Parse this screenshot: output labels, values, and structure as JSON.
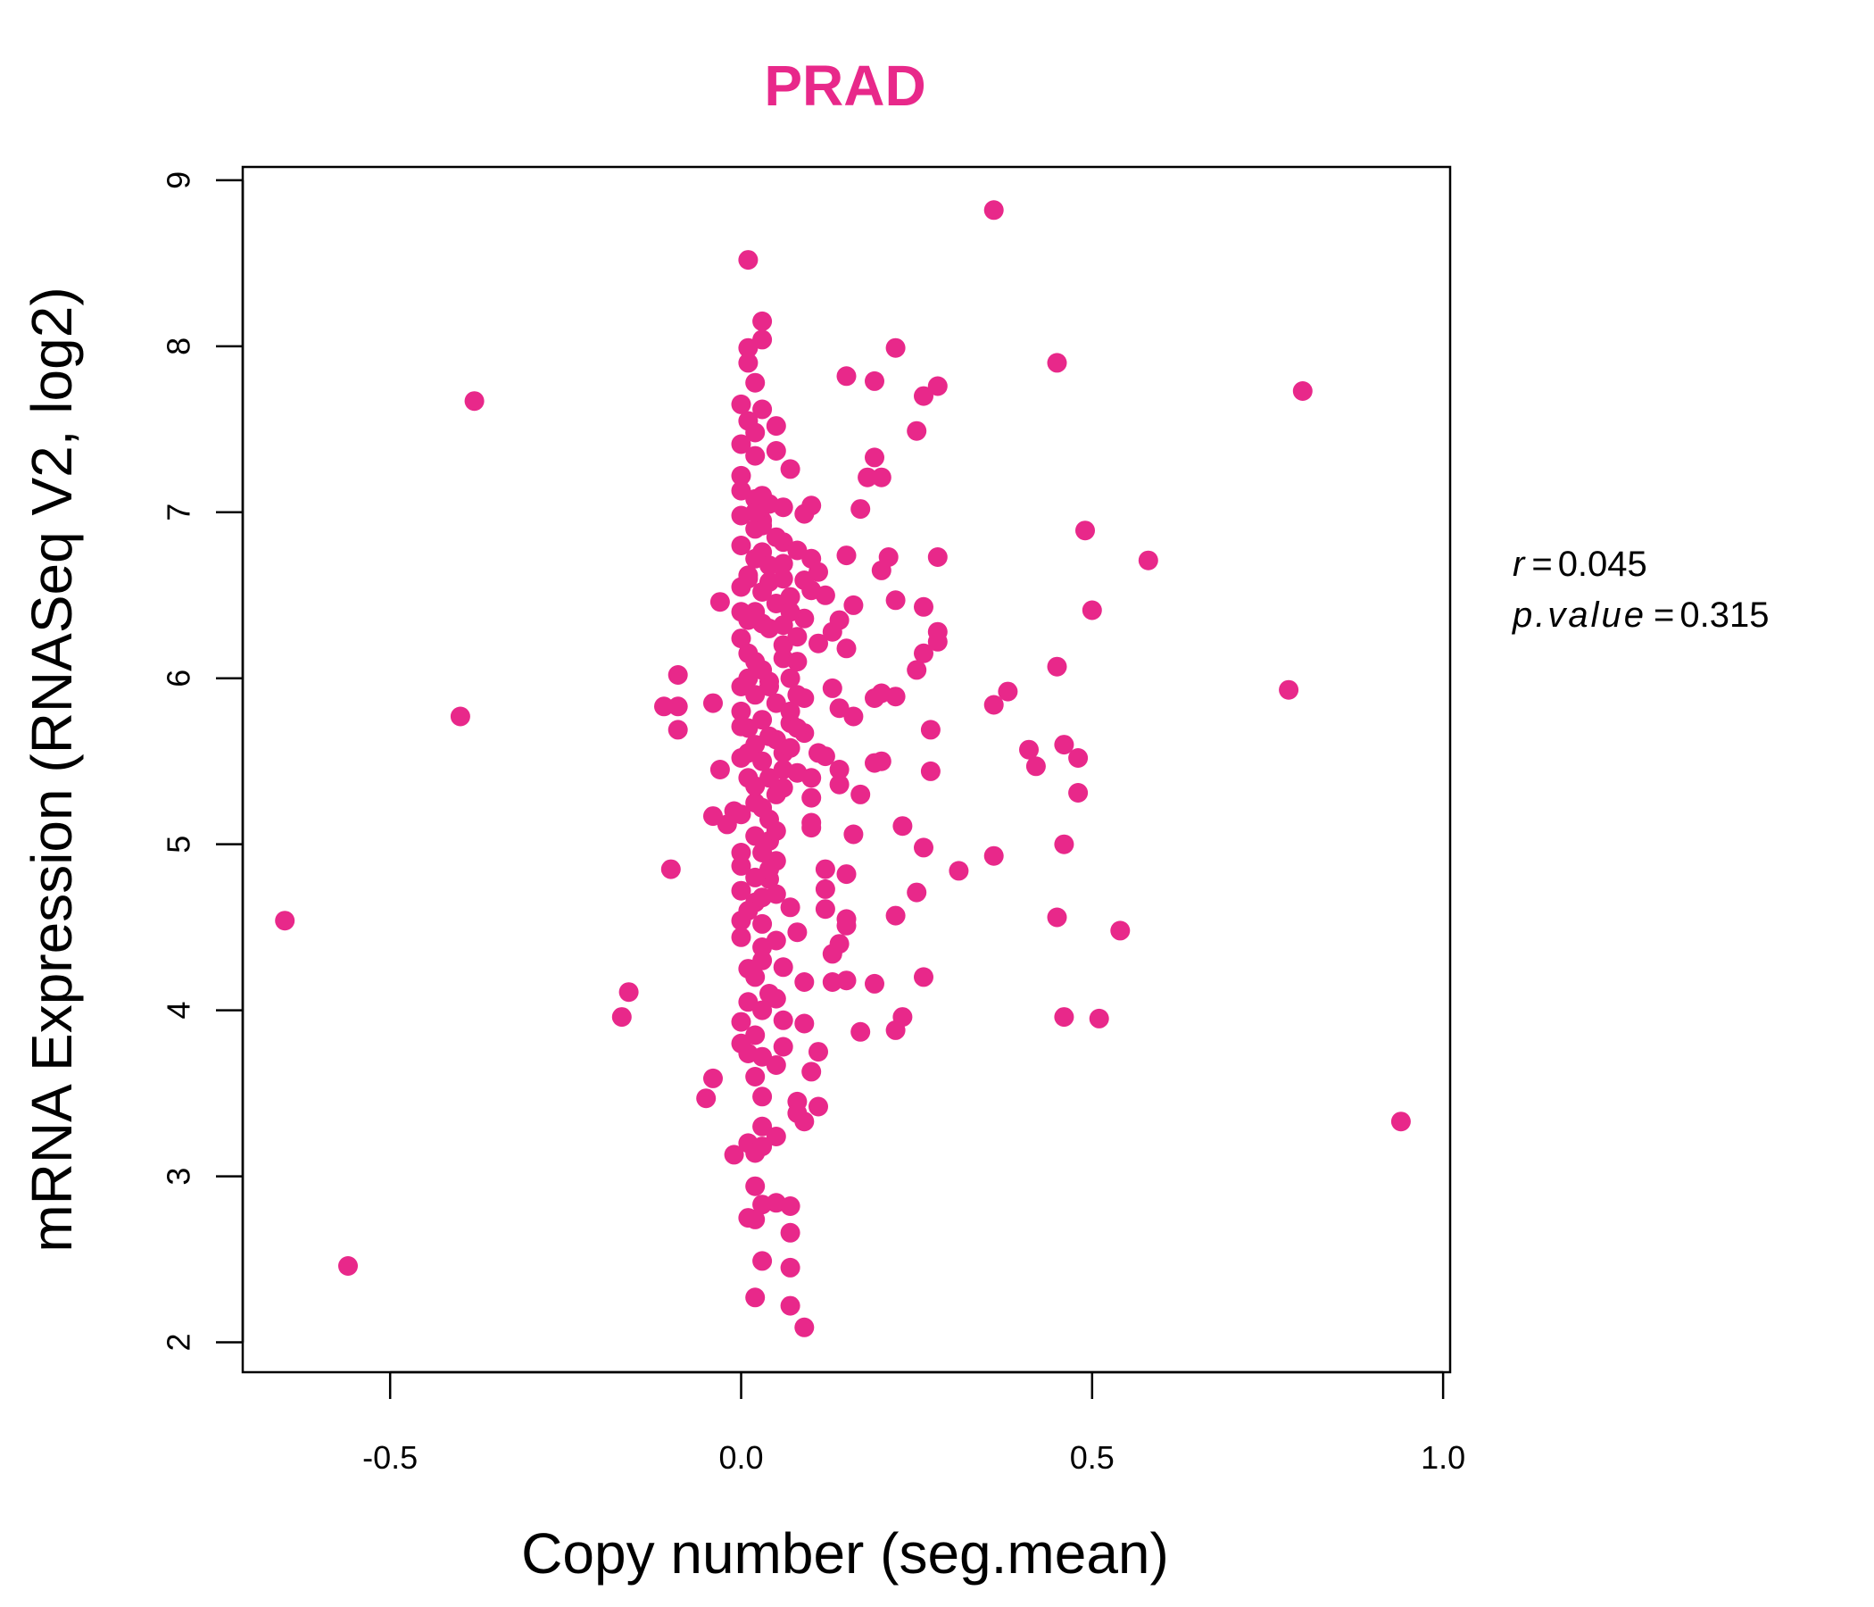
{
  "chart_data": {
    "type": "scatter",
    "title": "PRAD",
    "xlabel": "Copy number (seg.mean)",
    "ylabel": "mRNA Expression (RNASeq V2, log2)",
    "xlim": [
      -0.71,
      1.01
    ],
    "ylim": [
      1.82,
      9.08
    ],
    "xticks": [
      -0.5,
      0.0,
      0.5,
      1.0
    ],
    "xtick_labels": [
      "-0.5",
      "0.0",
      "0.5",
      "1.0"
    ],
    "yticks": [
      2,
      3,
      4,
      5,
      6,
      7,
      8,
      9
    ],
    "ytick_labels": [
      "2",
      "3",
      "4",
      "5",
      "6",
      "7",
      "8",
      "9"
    ],
    "grid": false,
    "legend": "none",
    "point_color": "#E8288A",
    "title_color": "#E8288A",
    "stats": {
      "r_symbol": "r",
      "r_value": "0.045",
      "p_symbol": "p.value",
      "p_value": "0.315",
      "equals": "="
    },
    "points": [
      [
        0.36,
        8.82
      ],
      [
        0.01,
        8.52
      ],
      [
        0.03,
        8.15
      ],
      [
        0.03,
        8.04
      ],
      [
        0.22,
        7.99
      ],
      [
        0.01,
        7.99
      ],
      [
        0.01,
        7.9
      ],
      [
        0.45,
        7.9
      ],
      [
        0.15,
        7.82
      ],
      [
        0.19,
        7.79
      ],
      [
        0.02,
        7.78
      ],
      [
        0.28,
        7.76
      ],
      [
        0.8,
        7.73
      ],
      [
        0.26,
        7.7
      ],
      [
        -0.38,
        7.67
      ],
      [
        0.0,
        7.65
      ],
      [
        0.03,
        7.62
      ],
      [
        0.01,
        7.55
      ],
      [
        0.05,
        7.52
      ],
      [
        0.02,
        7.48
      ],
      [
        0.25,
        7.49
      ],
      [
        0.0,
        7.41
      ],
      [
        0.05,
        7.37
      ],
      [
        0.02,
        7.34
      ],
      [
        0.19,
        7.33
      ],
      [
        0.07,
        7.26
      ],
      [
        0.18,
        7.21
      ],
      [
        0.2,
        7.21
      ],
      [
        0.0,
        7.22
      ],
      [
        0.0,
        7.13
      ],
      [
        0.02,
        7.08
      ],
      [
        0.1,
        7.04
      ],
      [
        0.06,
        7.03
      ],
      [
        0.17,
        7.02
      ],
      [
        0.09,
        6.99
      ],
      [
        0.0,
        6.98
      ],
      [
        0.03,
        6.95
      ],
      [
        0.02,
        6.9
      ],
      [
        0.49,
        6.89
      ],
      [
        0.06,
        6.82
      ],
      [
        0.0,
        6.8
      ],
      [
        0.08,
        6.77
      ],
      [
        0.03,
        6.76
      ],
      [
        0.15,
        6.74
      ],
      [
        0.21,
        6.73
      ],
      [
        0.28,
        6.73
      ],
      [
        0.1,
        6.72
      ],
      [
        0.58,
        6.71
      ],
      [
        0.06,
        6.69
      ],
      [
        0.2,
        6.65
      ],
      [
        0.11,
        6.64
      ],
      [
        0.01,
        6.62
      ],
      [
        0.09,
        6.59
      ],
      [
        0.04,
        6.58
      ],
      [
        0.0,
        6.55
      ],
      [
        0.1,
        6.53
      ],
      [
        0.12,
        6.5
      ],
      [
        0.07,
        6.49
      ],
      [
        0.22,
        6.47
      ],
      [
        -0.03,
        6.46
      ],
      [
        0.16,
        6.44
      ],
      [
        0.26,
        6.43
      ],
      [
        0.5,
        6.41
      ],
      [
        0.14,
        6.35
      ],
      [
        0.09,
        6.36
      ],
      [
        0.03,
        6.33
      ],
      [
        0.13,
        6.28
      ],
      [
        0.28,
        6.28
      ],
      [
        0.11,
        6.21
      ],
      [
        0.0,
        6.24
      ],
      [
        0.28,
        6.22
      ],
      [
        0.15,
        6.18
      ],
      [
        0.26,
        6.15
      ],
      [
        0.06,
        6.12
      ],
      [
        0.25,
        6.05
      ],
      [
        0.45,
        6.07
      ],
      [
        -0.09,
        6.02
      ],
      [
        0.01,
        6.0
      ],
      [
        0.04,
        5.98
      ],
      [
        0.13,
        5.94
      ],
      [
        0.38,
        5.92
      ],
      [
        0.78,
        5.93
      ],
      [
        0.2,
        5.91
      ],
      [
        0.19,
        5.88
      ],
      [
        0.22,
        5.89
      ],
      [
        0.09,
        5.88
      ],
      [
        -0.04,
        5.85
      ],
      [
        0.36,
        5.84
      ],
      [
        -0.11,
        5.83
      ],
      [
        -0.09,
        5.83
      ],
      [
        0.14,
        5.82
      ],
      [
        0.0,
        5.8
      ],
      [
        0.16,
        5.77
      ],
      [
        -0.4,
        5.77
      ],
      [
        0.07,
        5.73
      ],
      [
        0.0,
        5.71
      ],
      [
        -0.09,
        5.69
      ],
      [
        0.27,
        5.69
      ],
      [
        0.09,
        5.67
      ],
      [
        0.05,
        5.63
      ],
      [
        0.46,
        5.6
      ],
      [
        0.41,
        5.57
      ],
      [
        0.11,
        5.55
      ],
      [
        0.12,
        5.53
      ],
      [
        0.48,
        5.52
      ],
      [
        0.0,
        5.52
      ],
      [
        0.2,
        5.5
      ],
      [
        0.19,
        5.49
      ],
      [
        0.42,
        5.47
      ],
      [
        0.14,
        5.45
      ],
      [
        -0.03,
        5.45
      ],
      [
        0.27,
        5.44
      ],
      [
        0.08,
        5.43
      ],
      [
        0.1,
        5.4
      ],
      [
        0.14,
        5.36
      ],
      [
        0.06,
        5.34
      ],
      [
        0.48,
        5.31
      ],
      [
        0.17,
        5.3
      ],
      [
        0.1,
        5.28
      ],
      [
        0.02,
        5.25
      ],
      [
        -0.01,
        5.2
      ],
      [
        0.0,
        5.18
      ],
      [
        -0.04,
        5.17
      ],
      [
        0.1,
        5.13
      ],
      [
        -0.02,
        5.12
      ],
      [
        0.23,
        5.11
      ],
      [
        0.1,
        5.1
      ],
      [
        0.16,
        5.06
      ],
      [
        0.04,
        5.02
      ],
      [
        0.46,
        5.0
      ],
      [
        0.26,
        4.98
      ],
      [
        0.0,
        4.95
      ],
      [
        0.36,
        4.93
      ],
      [
        0.05,
        4.9
      ],
      [
        0.0,
        4.87
      ],
      [
        0.12,
        4.85
      ],
      [
        -0.1,
        4.85
      ],
      [
        0.31,
        4.84
      ],
      [
        0.15,
        4.82
      ],
      [
        0.04,
        4.79
      ],
      [
        0.12,
        4.73
      ],
      [
        0.0,
        4.72
      ],
      [
        0.25,
        4.71
      ],
      [
        0.02,
        4.65
      ],
      [
        0.07,
        4.62
      ],
      [
        0.12,
        4.61
      ],
      [
        0.22,
        4.57
      ],
      [
        0.45,
        4.56
      ],
      [
        0.15,
        4.55
      ],
      [
        0.0,
        4.54
      ],
      [
        -0.65,
        4.54
      ],
      [
        0.15,
        4.51
      ],
      [
        0.54,
        4.48
      ],
      [
        0.08,
        4.47
      ],
      [
        0.0,
        4.44
      ],
      [
        0.05,
        4.42
      ],
      [
        0.14,
        4.4
      ],
      [
        0.03,
        4.38
      ],
      [
        0.13,
        4.34
      ],
      [
        0.03,
        4.3
      ],
      [
        0.06,
        4.26
      ],
      [
        0.01,
        4.25
      ],
      [
        0.02,
        4.2
      ],
      [
        0.26,
        4.2
      ],
      [
        0.15,
        4.18
      ],
      [
        0.09,
        4.17
      ],
      [
        0.13,
        4.17
      ],
      [
        0.19,
        4.16
      ],
      [
        -0.16,
        4.11
      ],
      [
        0.04,
        4.1
      ],
      [
        0.05,
        4.07
      ],
      [
        0.01,
        4.05
      ],
      [
        0.03,
        4.0
      ],
      [
        0.46,
        3.96
      ],
      [
        0.51,
        3.95
      ],
      [
        -0.17,
        3.96
      ],
      [
        0.23,
        3.96
      ],
      [
        0.06,
        3.94
      ],
      [
        0.0,
        3.93
      ],
      [
        0.09,
        3.92
      ],
      [
        0.22,
        3.88
      ],
      [
        0.17,
        3.87
      ],
      [
        0.02,
        3.85
      ],
      [
        0.0,
        3.8
      ],
      [
        0.06,
        3.78
      ],
      [
        0.11,
        3.75
      ],
      [
        0.01,
        3.74
      ],
      [
        0.03,
        3.72
      ],
      [
        0.05,
        3.67
      ],
      [
        0.1,
        3.63
      ],
      [
        0.02,
        3.6
      ],
      [
        -0.04,
        3.59
      ],
      [
        0.03,
        3.48
      ],
      [
        -0.05,
        3.47
      ],
      [
        0.08,
        3.45
      ],
      [
        0.11,
        3.42
      ],
      [
        0.08,
        3.38
      ],
      [
        0.09,
        3.33
      ],
      [
        0.94,
        3.33
      ],
      [
        0.03,
        3.3
      ],
      [
        0.05,
        3.24
      ],
      [
        0.01,
        3.2
      ],
      [
        0.03,
        3.18
      ],
      [
        0.02,
        3.14
      ],
      [
        -0.01,
        3.13
      ],
      [
        0.02,
        2.94
      ],
      [
        0.05,
        2.84
      ],
      [
        0.03,
        2.83
      ],
      [
        0.07,
        2.82
      ],
      [
        0.01,
        2.75
      ],
      [
        0.02,
        2.74
      ],
      [
        0.07,
        2.66
      ],
      [
        0.03,
        2.49
      ],
      [
        -0.56,
        2.46
      ],
      [
        0.07,
        2.45
      ],
      [
        0.02,
        2.27
      ],
      [
        0.07,
        2.22
      ],
      [
        0.09,
        2.09
      ],
      [
        0.02,
        6.1
      ],
      [
        0.03,
        6.05
      ],
      [
        0.04,
        5.95
      ],
      [
        0.02,
        5.9
      ],
      [
        0.05,
        5.85
      ],
      [
        0.03,
        5.75
      ],
      [
        0.01,
        5.7
      ],
      [
        0.04,
        5.65
      ],
      [
        0.02,
        5.6
      ],
      [
        0.06,
        5.55
      ],
      [
        0.03,
        5.5
      ],
      [
        0.04,
        5.4
      ],
      [
        0.02,
        5.35
      ],
      [
        0.05,
        5.3
      ],
      [
        0.03,
        5.22
      ],
      [
        0.06,
        6.2
      ],
      [
        0.04,
        6.3
      ],
      [
        0.02,
        6.4
      ],
      [
        0.05,
        6.45
      ],
      [
        0.03,
        6.52
      ],
      [
        0.01,
        6.6
      ],
      [
        0.04,
        6.68
      ],
      [
        0.02,
        6.72
      ],
      [
        0.05,
        6.85
      ],
      [
        0.03,
        6.92
      ],
      [
        0.07,
        6.0
      ],
      [
        0.07,
        5.8
      ],
      [
        0.07,
        5.58
      ],
      [
        0.06,
        5.45
      ],
      [
        0.06,
        6.32
      ],
      [
        0.01,
        6.15
      ],
      [
        0.0,
        5.95
      ],
      [
        0.01,
        5.55
      ],
      [
        0.0,
        6.4
      ],
      [
        0.01,
        5.4
      ],
      [
        0.04,
        5.15
      ],
      [
        0.02,
        5.05
      ],
      [
        0.05,
        5.08
      ],
      [
        0.03,
        4.95
      ],
      [
        0.04,
        4.85
      ],
      [
        0.02,
        4.8
      ],
      [
        0.03,
        4.68
      ],
      [
        0.05,
        4.7
      ],
      [
        0.01,
        4.6
      ],
      [
        0.03,
        4.52
      ],
      [
        0.02,
        7.0
      ],
      [
        0.04,
        7.05
      ],
      [
        0.03,
        7.1
      ],
      [
        0.01,
        6.35
      ],
      [
        0.08,
        6.1
      ],
      [
        0.08,
        5.9
      ],
      [
        0.08,
        6.25
      ],
      [
        0.07,
        6.4
      ],
      [
        0.06,
        6.6
      ],
      [
        0.08,
        5.7
      ]
    ]
  }
}
